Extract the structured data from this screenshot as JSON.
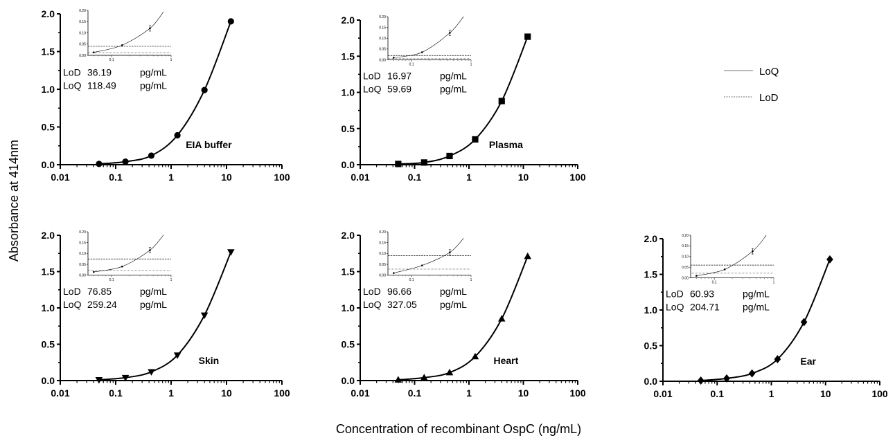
{
  "figure": {
    "ylabel": "Absorbance at 414nm",
    "xlabel": "Concentration of recombinant OspC (ng/mL)"
  },
  "legend": {
    "items": [
      {
        "label": "LoQ",
        "style": "solid"
      },
      {
        "label": "LoD",
        "style": "dashed"
      }
    ]
  },
  "chart_data": [
    {
      "type": "scatter",
      "label": "EIA buffer",
      "marker": "circle",
      "xscale": "log",
      "x": [
        0.05,
        0.15,
        0.44,
        1.3,
        4,
        12
      ],
      "y": [
        0.01,
        0.04,
        0.12,
        0.39,
        0.99,
        1.9
      ],
      "xlim": [
        0.01,
        100
      ],
      "ylim": [
        0,
        2
      ],
      "xticks": [
        "0.01",
        "0.1",
        "1",
        "10",
        "100"
      ],
      "yticks": [
        "0.0",
        "0.5",
        "1.0",
        "1.5",
        "2.0"
      ],
      "lod": "36.19",
      "loq": "118.49",
      "unit": "pg/mL",
      "inset": {
        "xlim": [
          0.04,
          1
        ],
        "ylim": [
          0,
          0.2
        ],
        "yticks": [
          "0.00",
          "0.05",
          "0.10",
          "0.15",
          "0.20"
        ],
        "xticks": [
          "0.1",
          "1"
        ],
        "x": [
          0.05,
          0.15,
          0.44
        ],
        "y": [
          0.013,
          0.045,
          0.12
        ],
        "loq_line": 0.04,
        "lod_line": 0.012
      }
    },
    {
      "type": "scatter",
      "label": "Plasma",
      "marker": "square",
      "xscale": "log",
      "x": [
        0.05,
        0.15,
        0.44,
        1.3,
        4,
        12
      ],
      "y": [
        0.01,
        0.03,
        0.12,
        0.35,
        0.88,
        1.77
      ],
      "xlim": [
        0.01,
        100
      ],
      "ylim": [
        0,
        2
      ],
      "xticks": [
        "0.01",
        "0.1",
        "1",
        "10",
        "100"
      ],
      "yticks": [
        "0.0",
        "0.5",
        "1.0",
        "1.5",
        "2.0"
      ],
      "lod": "16.97",
      "loq": "59.69",
      "unit": "pg/mL",
      "inset": {
        "xlim": [
          0.04,
          1
        ],
        "ylim": [
          0,
          0.2
        ],
        "yticks": [
          "0.00",
          "0.05",
          "0.10",
          "0.15",
          "0.20"
        ],
        "xticks": [
          "0.1",
          "1"
        ],
        "x": [
          0.05,
          0.15,
          0.44
        ],
        "y": [
          0.01,
          0.035,
          0.125
        ],
        "loq_line": 0.02,
        "lod_line": 0.005
      }
    },
    {
      "type": "scatter",
      "label": "Skin",
      "marker": "triangle-down",
      "xscale": "log",
      "x": [
        0.05,
        0.15,
        0.44,
        1.3,
        4,
        12
      ],
      "y": [
        0.01,
        0.04,
        0.12,
        0.35,
        0.9,
        1.77
      ],
      "xlim": [
        0.01,
        100
      ],
      "ylim": [
        0,
        2
      ],
      "xticks": [
        "0.01",
        "0.1",
        "1",
        "10",
        "100"
      ],
      "yticks": [
        "0.0",
        "0.5",
        "1.0",
        "1.5",
        "2.0"
      ],
      "lod": "76.85",
      "loq": "259.24",
      "unit": "pg/mL",
      "inset": {
        "xlim": [
          0.04,
          1
        ],
        "ylim": [
          0,
          0.2
        ],
        "yticks": [
          "0.00",
          "0.05",
          "0.10",
          "0.15",
          "0.20"
        ],
        "xticks": [
          "0.1",
          "1"
        ],
        "x": [
          0.05,
          0.15,
          0.44
        ],
        "y": [
          0.015,
          0.04,
          0.115
        ],
        "loq_line": 0.075,
        "lod_line": 0.022
      }
    },
    {
      "type": "scatter",
      "label": "Heart",
      "marker": "triangle-up",
      "xscale": "log",
      "x": [
        0.05,
        0.15,
        0.44,
        1.3,
        4,
        12
      ],
      "y": [
        0.01,
        0.04,
        0.11,
        0.33,
        0.85,
        1.71
      ],
      "xlim": [
        0.01,
        100
      ],
      "ylim": [
        0,
        2
      ],
      "xticks": [
        "0.01",
        "0.1",
        "1",
        "10",
        "100"
      ],
      "yticks": [
        "0.0",
        "0.5",
        "1.0",
        "1.5",
        "2.0"
      ],
      "lod": "96.66",
      "loq": "327.05",
      "unit": "pg/mL",
      "inset": {
        "xlim": [
          0.04,
          1
        ],
        "ylim": [
          0,
          0.2
        ],
        "yticks": [
          "0.00",
          "0.05",
          "0.10",
          "0.15",
          "0.20"
        ],
        "xticks": [
          "0.1",
          "1"
        ],
        "x": [
          0.05,
          0.15,
          0.44
        ],
        "y": [
          0.01,
          0.045,
          0.105
        ],
        "loq_line": 0.09,
        "lod_line": 0.028
      }
    },
    {
      "type": "scatter",
      "label": "Ear",
      "marker": "diamond",
      "xscale": "log",
      "x": [
        0.05,
        0.15,
        0.44,
        1.3,
        4,
        12
      ],
      "y": [
        0.01,
        0.04,
        0.11,
        0.31,
        0.83,
        1.71
      ],
      "xlim": [
        0.01,
        100
      ],
      "ylim": [
        0,
        2
      ],
      "xticks": [
        "0.01",
        "0.1",
        "1",
        "10",
        "100"
      ],
      "yticks": [
        "0.0",
        "0.5",
        "1.0",
        "1.5",
        "2.0"
      ],
      "lod": "60.93",
      "loq": "204.71",
      "unit": "pg/mL",
      "inset": {
        "xlim": [
          0.04,
          1
        ],
        "ylim": [
          0,
          0.2
        ],
        "yticks": [
          "0.00",
          "0.05",
          "0.10",
          "0.15",
          "0.20"
        ],
        "xticks": [
          "0.1",
          "1"
        ],
        "x": [
          0.05,
          0.15,
          0.44
        ],
        "y": [
          0.01,
          0.04,
          0.125
        ],
        "loq_line": 0.06,
        "lod_line": 0.022
      }
    }
  ]
}
